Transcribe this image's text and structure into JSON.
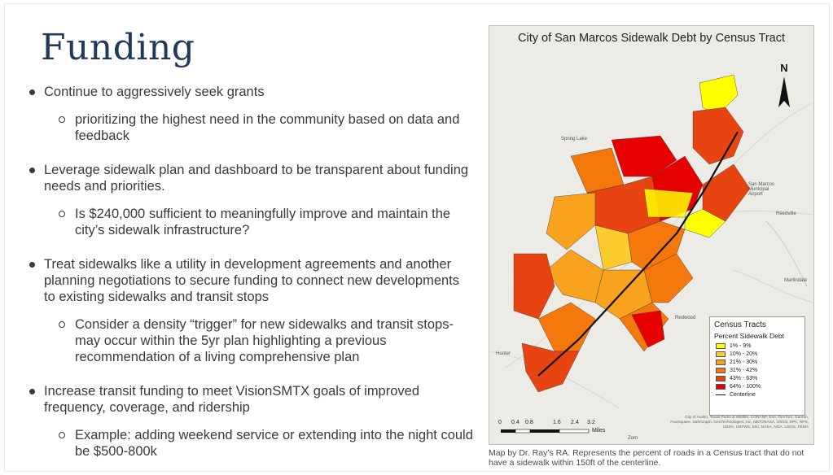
{
  "slide": {
    "title": "Funding",
    "bullets": [
      {
        "text": "Continue to aggressively seek grants",
        "sub": [
          "prioritizing the highest need in the community based on data and feedback"
        ]
      },
      {
        "text": "Leverage sidewalk plan and dashboard to be transparent about funding needs and priorities.",
        "sub": [
          "Is $240,000 sufficient to meaningfully improve and maintain the city’s sidewalk infrastructure?"
        ]
      },
      {
        "text": "Treat sidewalks like a utility in development agreements and another planning negotiations to secure funding to connect new developments to existing sidewalks and transit stops",
        "sub": [
          "Consider a density “trigger” for new sidewalks and transit stops- may occur within the 5yr plan highlighting a previous recommendation of a living comprehensive plan"
        ]
      },
      {
        "text": "Increase transit funding to meet VisionSMTX goals of improved frequency, coverage, and ridership",
        "sub": [
          "Example: adding weekend service or extending into the night could be $500-800k"
        ]
      }
    ]
  },
  "map": {
    "title": "City of San Marcos Sidewalk Debt by Census Tract",
    "north_label": "N",
    "legend": {
      "title": "Census Tracts",
      "subtitle": "Percent Sidewalk Debt",
      "items": [
        {
          "label": "1% - 9%",
          "color": "#ffff00"
        },
        {
          "label": "10% - 20%",
          "color": "#fecb2e"
        },
        {
          "label": "21% - 30%",
          "color": "#f8a21e"
        },
        {
          "label": "31% - 42%",
          "color": "#f4780c"
        },
        {
          "label": "43% - 63%",
          "color": "#e84412"
        },
        {
          "label": "64% - 100%",
          "color": "#e60000"
        }
      ],
      "line_label": "Centerline"
    },
    "scale": {
      "ticks": [
        "0",
        "0.4",
        "0.8",
        "1.6",
        "2.4",
        "3.2"
      ],
      "unit": "Miles"
    },
    "credits": "City of Austin, Texas Parks & Wildlife, CONANP, Esri, TomTom, Garmin, Foursquare, SafeGraph, GeoTechnologies, Inc, METI/NASA, USGS, EPA, NPS, USDA, USFWS, Esri, NASA, NGA, USGS, FEMA",
    "places": [
      {
        "name": "Spring Lake"
      },
      {
        "name": "San Marcos Municipal Airport"
      },
      {
        "name": "Reedville"
      },
      {
        "name": "Martindale"
      },
      {
        "name": "Redwood"
      },
      {
        "name": "Hunter"
      },
      {
        "name": "Zorn"
      }
    ],
    "caption": "Map by Dr. Ray’s RA. Represents the percent of roads in a Census tract that do not have a sidewalk within 150ft of the centerline."
  }
}
